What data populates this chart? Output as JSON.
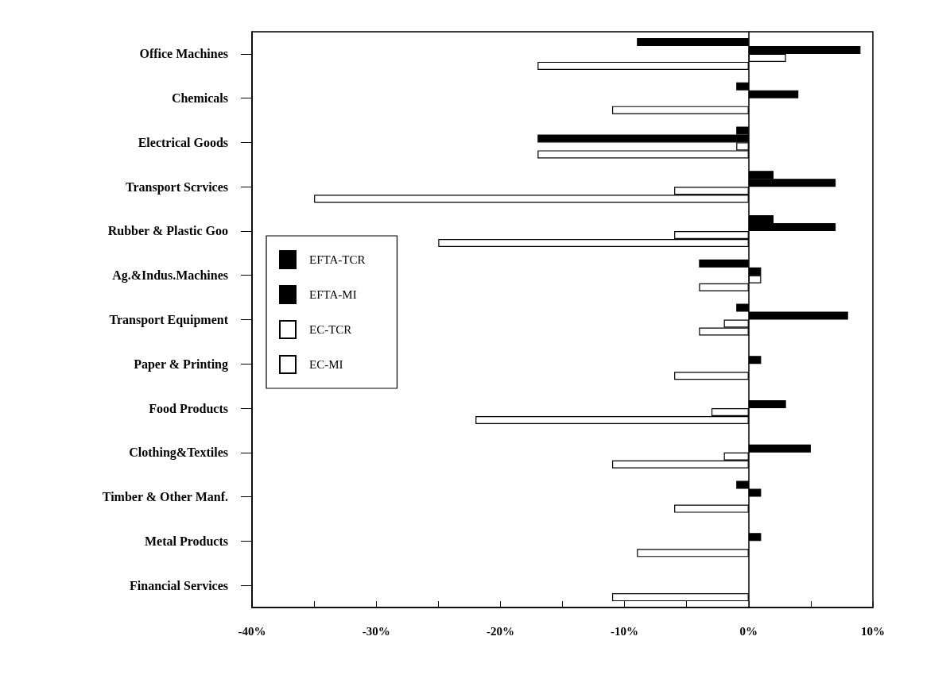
{
  "chart_data": {
    "type": "bar",
    "orientation": "horizontal",
    "categories": [
      "Office Machines",
      "Chemicals",
      "Electrical Goods",
      "Transport Scrvices",
      "Rubber & Plastic Goo",
      "Ag.&Indus.Machines",
      "Transport Equipment",
      "Paper & Printing",
      "Food Products",
      "Clothing&Textiles",
      "Timber & Other Manf.",
      "Metal Products",
      "Financial Services"
    ],
    "series": [
      {
        "name": "EFTA-TCR",
        "color": "#000000",
        "values": [
          -9,
          -1,
          -1,
          2,
          2,
          -4,
          -1,
          null,
          null,
          null,
          -1,
          null,
          null
        ]
      },
      {
        "name": "EFTA-MI",
        "color": "#000000",
        "values": [
          9,
          4,
          -17,
          7,
          7,
          1,
          8,
          1,
          3,
          5,
          1,
          1,
          null
        ]
      },
      {
        "name": "EC-TCR",
        "color": "#ffffff",
        "values": [
          3,
          null,
          -1,
          -6,
          -6,
          1,
          -2,
          null,
          -3,
          -2,
          null,
          null,
          null
        ]
      },
      {
        "name": "EC-MI",
        "color": "#ffffff",
        "values": [
          -17,
          -11,
          -17,
          -35,
          -25,
          -4,
          -4,
          -6,
          -22,
          -11,
          -6,
          -9,
          -11
        ]
      }
    ],
    "xlim": [
      -40,
      10
    ],
    "xticks": [
      {
        "value": -40,
        "label": "-40%"
      },
      {
        "value": -35,
        "label": null
      },
      {
        "value": -30,
        "label": "-30%"
      },
      {
        "value": -25,
        "label": null
      },
      {
        "value": -20,
        "label": "-20%"
      },
      {
        "value": -15,
        "label": null
      },
      {
        "value": -10,
        "label": "-10%"
      },
      {
        "value": -5,
        "label": null
      },
      {
        "value": 0,
        "label": "0%"
      },
      {
        "value": 5,
        "label": null
      },
      {
        "value": 10,
        "label": "10%"
      }
    ],
    "legend": "left"
  }
}
